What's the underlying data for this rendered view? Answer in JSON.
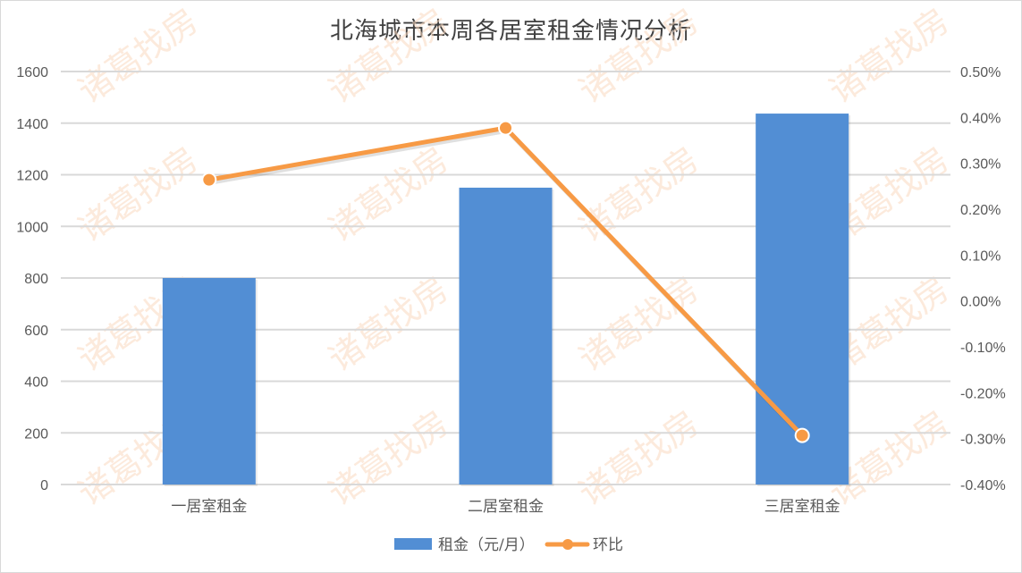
{
  "chart_data": {
    "type": "bar+line",
    "title": "北海城市本周各居室租金情况分析",
    "categories": [
      "一居室租金",
      "二居室租金",
      "三居室租金"
    ],
    "series": [
      {
        "name": "租金（元/月）",
        "type": "bar",
        "axis": "left",
        "color": "#528ed4",
        "values": [
          800,
          1150,
          1437
        ]
      },
      {
        "name": "环比",
        "type": "line",
        "axis": "right",
        "color": "#f79a45",
        "values": [
          0.264,
          0.377,
          -0.293
        ],
        "unit": "%"
      }
    ],
    "ylabel_left": "",
    "ylim_left": [
      0,
      1600
    ],
    "yticks_left": [
      "0",
      "200",
      "400",
      "600",
      "800",
      "1000",
      "1200",
      "1400",
      "1600"
    ],
    "ylim_right": [
      -0.4,
      0.5
    ],
    "yticks_right": [
      "-0.40%",
      "-0.30%",
      "-0.20%",
      "-0.10%",
      "0.00%",
      "0.10%",
      "0.20%",
      "0.30%",
      "0.40%",
      "0.50%"
    ],
    "grid": true,
    "legend_position": "bottom"
  },
  "title": "北海城市本周各居室租金情况分析",
  "legend": {
    "bar_label": "租金（元/月）",
    "line_label": "环比"
  },
  "watermark": "诸葛找房"
}
